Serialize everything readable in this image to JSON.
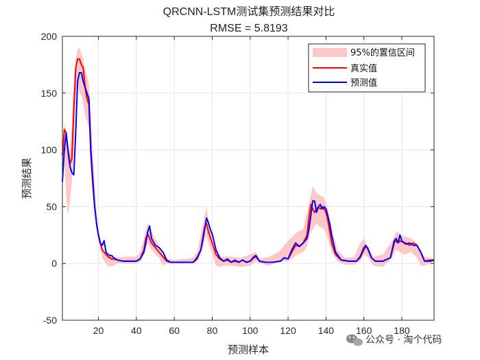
{
  "chart_data": {
    "type": "line",
    "title": "QRCNN-LSTM测试集预测结果对比",
    "subtitle": "RMSE = 5.8193",
    "xlabel": "预测样本",
    "ylabel": "预测结果",
    "xlim": [
      1,
      197
    ],
    "ylim": [
      -50,
      200
    ],
    "xticks": [
      20,
      40,
      60,
      80,
      100,
      120,
      140,
      160,
      180
    ],
    "yticks": [
      -50,
      0,
      50,
      100,
      150,
      200
    ],
    "grid": true,
    "legend_position": "top-right",
    "band": {
      "name": "95%的置信区间",
      "color": "#ffc8c8",
      "x": [
        1,
        2,
        3,
        4,
        5,
        6,
        7,
        8,
        9,
        10,
        11,
        12,
        13,
        14,
        15,
        16,
        17,
        18,
        19,
        20,
        21,
        22,
        23,
        24,
        25,
        26,
        28,
        30,
        35,
        40,
        42,
        44,
        46,
        48,
        50,
        52,
        54,
        56,
        60,
        65,
        70,
        72,
        74,
        76,
        77,
        78,
        80,
        82,
        84,
        86,
        90,
        95,
        100,
        103,
        105,
        110,
        115,
        120,
        125,
        128,
        130,
        132,
        133,
        135,
        137,
        139,
        141,
        143,
        146,
        150,
        155,
        158,
        160,
        162,
        165,
        170,
        175,
        177,
        179,
        181,
        185,
        188,
        190,
        192,
        195,
        197
      ],
      "lower": [
        65,
        90,
        60,
        42,
        55,
        72,
        100,
        145,
        160,
        150,
        148,
        140,
        130,
        125,
        120,
        100,
        80,
        55,
        35,
        20,
        12,
        5,
        2,
        0,
        -2,
        -3,
        -2,
        0,
        0,
        0,
        2,
        8,
        18,
        12,
        8,
        5,
        -2,
        0,
        0,
        0,
        0,
        2,
        8,
        20,
        25,
        18,
        8,
        -2,
        -3,
        -2,
        -2,
        -3,
        -2,
        2,
        0,
        -2,
        2,
        2,
        8,
        10,
        15,
        28,
        30,
        35,
        32,
        30,
        22,
        10,
        2,
        -1,
        -1,
        2,
        8,
        6,
        -2,
        -3,
        5,
        12,
        10,
        8,
        10,
        5,
        -2,
        -2,
        0,
        2
      ],
      "upper": [
        95,
        125,
        110,
        95,
        100,
        120,
        160,
        180,
        188,
        190,
        185,
        180,
        170,
        165,
        158,
        130,
        100,
        70,
        45,
        30,
        22,
        15,
        10,
        8,
        6,
        8,
        6,
        5,
        6,
        6,
        10,
        22,
        35,
        28,
        22,
        15,
        8,
        4,
        3,
        4,
        5,
        10,
        25,
        42,
        50,
        38,
        22,
        8,
        5,
        6,
        6,
        5,
        8,
        10,
        4,
        6,
        10,
        20,
        28,
        30,
        45,
        60,
        68,
        62,
        60,
        58,
        48,
        30,
        12,
        5,
        6,
        18,
        22,
        14,
        6,
        8,
        20,
        28,
        26,
        24,
        22,
        18,
        10,
        6,
        5,
        4
      ]
    },
    "series": [
      {
        "name": "真实值",
        "color": "#ff0000",
        "x": [
          1,
          2,
          3,
          4,
          5,
          6,
          7,
          8,
          9,
          10,
          11,
          12,
          13,
          14,
          15,
          16,
          17,
          18,
          19,
          20,
          21,
          22,
          23,
          24,
          25,
          26,
          27,
          28,
          30,
          33,
          36,
          40,
          42,
          44,
          45,
          46,
          48,
          50,
          52,
          54,
          56,
          58,
          62,
          66,
          70,
          72,
          74,
          75,
          76,
          77,
          78,
          80,
          82,
          84,
          86,
          88,
          90,
          92,
          94,
          96,
          98,
          100,
          102,
          103,
          105,
          108,
          112,
          116,
          118,
          120,
          122,
          124,
          126,
          128,
          130,
          131,
          132,
          133,
          134,
          135,
          136,
          137,
          138,
          139,
          140,
          141,
          142,
          143,
          145,
          148,
          152,
          156,
          158,
          160,
          161,
          162,
          164,
          166,
          170,
          174,
          176,
          177,
          178,
          179,
          180,
          182,
          184,
          186,
          188,
          190,
          192,
          195,
          197
        ],
        "values": [
          95,
          118,
          115,
          100,
          88,
          92,
          135,
          172,
          180,
          180,
          175,
          172,
          155,
          145,
          140,
          95,
          70,
          50,
          35,
          25,
          18,
          12,
          10,
          8,
          6,
          5,
          4,
          4,
          3,
          2,
          2,
          2,
          4,
          12,
          22,
          26,
          18,
          14,
          10,
          6,
          2,
          1,
          1,
          1,
          1,
          4,
          12,
          22,
          32,
          35,
          28,
          18,
          8,
          4,
          2,
          3,
          1,
          2,
          1,
          3,
          1,
          2,
          5,
          6,
          2,
          1,
          1,
          2,
          5,
          4,
          10,
          16,
          15,
          18,
          25,
          40,
          52,
          48,
          45,
          48,
          50,
          48,
          50,
          48,
          45,
          38,
          28,
          18,
          8,
          3,
          2,
          2,
          5,
          12,
          15,
          14,
          5,
          2,
          2,
          5,
          18,
          20,
          18,
          20,
          19,
          18,
          16,
          18,
          16,
          10,
          2,
          3,
          3
        ]
      },
      {
        "name": "预测值",
        "color": "#0000ff",
        "x": [
          1,
          2,
          3,
          4,
          5,
          6,
          7,
          8,
          9,
          10,
          11,
          12,
          13,
          14,
          15,
          16,
          17,
          18,
          19,
          20,
          21,
          22,
          23,
          24,
          25,
          26,
          27,
          28,
          30,
          33,
          36,
          40,
          42,
          44,
          45,
          46,
          47,
          48,
          50,
          52,
          54,
          56,
          58,
          62,
          66,
          70,
          72,
          74,
          75,
          76,
          77,
          78,
          79,
          80,
          82,
          84,
          86,
          88,
          90,
          92,
          94,
          96,
          98,
          100,
          102,
          103,
          105,
          108,
          112,
          116,
          118,
          120,
          122,
          124,
          126,
          128,
          130,
          131,
          132,
          133,
          134,
          135,
          136,
          137,
          138,
          139,
          140,
          141,
          142,
          143,
          145,
          148,
          152,
          156,
          158,
          160,
          161,
          162,
          164,
          166,
          170,
          174,
          176,
          177,
          178,
          179,
          180,
          182,
          184,
          186,
          188,
          190,
          192,
          195,
          197
        ],
        "values": [
          72,
          100,
          115,
          98,
          85,
          80,
          78,
          115,
          160,
          168,
          168,
          160,
          155,
          150,
          145,
          100,
          75,
          50,
          35,
          25,
          18,
          16,
          20,
          10,
          8,
          7,
          7,
          5,
          3,
          2,
          2,
          2,
          4,
          10,
          18,
          28,
          33,
          22,
          16,
          14,
          10,
          3,
          1,
          1,
          1,
          1,
          5,
          12,
          20,
          30,
          40,
          36,
          30,
          26,
          12,
          5,
          2,
          4,
          1,
          3,
          1,
          3,
          1,
          2,
          6,
          7,
          2,
          1,
          1,
          2,
          5,
          4,
          12,
          18,
          15,
          18,
          22,
          30,
          42,
          55,
          55,
          45,
          50,
          52,
          48,
          50,
          48,
          42,
          35,
          25,
          10,
          3,
          2,
          2,
          6,
          14,
          16,
          13,
          5,
          2,
          2,
          5,
          20,
          22,
          18,
          25,
          20,
          17,
          18,
          16,
          16,
          10,
          2,
          2,
          3
        ]
      }
    ]
  },
  "watermark": {
    "icon": "wechat-icon",
    "text": "公众号 · 淘个代码"
  }
}
